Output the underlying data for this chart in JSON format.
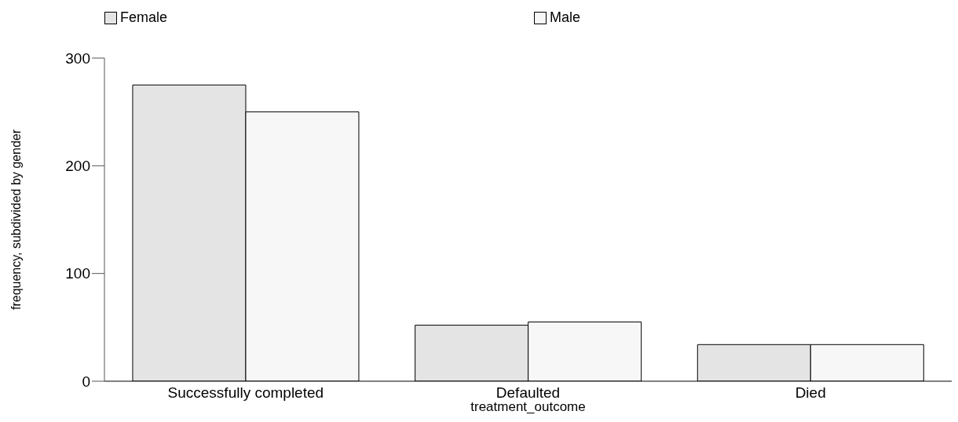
{
  "chart_data": {
    "type": "bar",
    "xlabel": "treatment_outcome",
    "ylabel": "frequency, subdivided by gender",
    "categories": [
      "Successfully completed",
      "Defaulted",
      "Died"
    ],
    "series": [
      {
        "name": "Female",
        "color": "#e4e4e4",
        "values": [
          275,
          52,
          34
        ]
      },
      {
        "name": "Male",
        "color": "#f7f7f7",
        "values": [
          250,
          55,
          34
        ]
      }
    ],
    "ylim": [
      0,
      300
    ],
    "yticks": [
      0,
      100,
      200,
      300
    ],
    "grid": false,
    "legend": "top"
  }
}
